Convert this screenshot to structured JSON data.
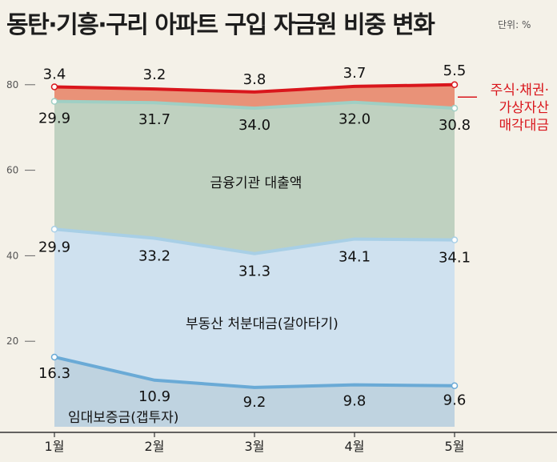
{
  "title": "동탄·기흥·구리 아파트 구입 자금원 비중 변화",
  "unit_note": "단위: %",
  "chart_data": {
    "type": "area",
    "stacked": true,
    "categories": [
      "1월",
      "2월",
      "3월",
      "4월",
      "5월"
    ],
    "ylim": [
      0,
      85
    ],
    "yticks": [
      "20",
      "40",
      "60",
      "80"
    ],
    "grid": false,
    "series": [
      {
        "name": "임대보증금",
        "name_suffix": "(갭투자)",
        "values": [
          16.3,
          10.9,
          9.2,
          9.8,
          9.6
        ],
        "labels": [
          "16.3",
          "10.9",
          "9.2",
          "9.8",
          "9.6"
        ],
        "fill": "#bfd3e0",
        "line": "#6aaad6"
      },
      {
        "name": "부동산 처분대금",
        "name_suffix": "(갈아타기)",
        "values": [
          29.9,
          33.2,
          31.3,
          34.1,
          34.1
        ],
        "labels": [
          "29.9",
          "33.2",
          "31.3",
          "34.1",
          "34.1"
        ],
        "fill": "#cfe1ef",
        "line": "#a8cfe6"
      },
      {
        "name": "금융기관 대출액",
        "values": [
          29.9,
          31.7,
          34.0,
          32.0,
          30.8
        ],
        "labels": [
          "29.9",
          "31.7",
          "34.0",
          "32.0",
          "30.8"
        ],
        "fill": "#bfd1c0",
        "line": "#9fcfc4"
      },
      {
        "name": "주식·채권·가상자산 매각대금",
        "name_lines": [
          "주식·채권·",
          "가상자산",
          "매각대금"
        ],
        "values": [
          3.4,
          3.2,
          3.8,
          3.7,
          5.5
        ],
        "labels": [
          "3.4",
          "3.2",
          "3.8",
          "3.7",
          "5.5"
        ],
        "fill": "#e99278",
        "line": "#d9161c"
      }
    ]
  }
}
